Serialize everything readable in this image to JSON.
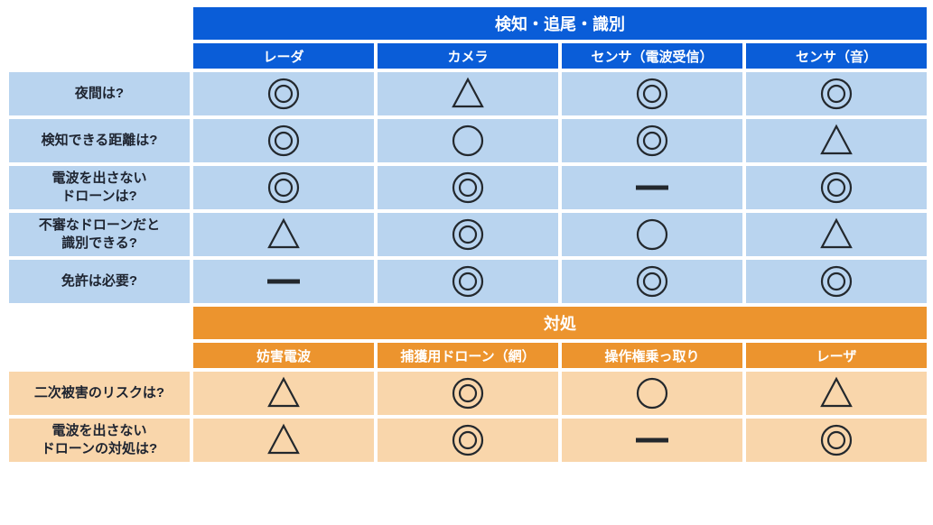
{
  "symbol_stroke": "#23282d",
  "symbol_stroke_width": 2.2,
  "sections": [
    {
      "key": "detect",
      "title": "検知・追尾・識別",
      "theme": "blue",
      "columns": [
        "レーダ",
        "カメラ",
        "センサ（電波受信）",
        "センサ（音）"
      ],
      "rows": [
        {
          "label": "夜間は?",
          "cells": [
            "double_circle",
            "triangle",
            "double_circle",
            "double_circle"
          ]
        },
        {
          "label": "検知できる距離は?",
          "cells": [
            "double_circle",
            "circle",
            "double_circle",
            "triangle"
          ]
        },
        {
          "label": "電波を出さない\nドローンは?",
          "cells": [
            "double_circle",
            "double_circle",
            "dash",
            "double_circle"
          ]
        },
        {
          "label": "不審なドローンだと\n識別できる?",
          "cells": [
            "triangle",
            "double_circle",
            "circle",
            "triangle"
          ]
        },
        {
          "label": "免許は必要?",
          "cells": [
            "dash",
            "double_circle",
            "double_circle",
            "double_circle"
          ]
        }
      ]
    },
    {
      "key": "counter",
      "title": "対処",
      "theme": "orange",
      "columns": [
        "妨害電波",
        "捕獲用ドローン（網）",
        "操作権乗っ取り",
        "レーザ"
      ],
      "rows": [
        {
          "label": "二次被害のリスクは?",
          "cells": [
            "triangle",
            "double_circle",
            "circle",
            "triangle"
          ]
        },
        {
          "label": "電波を出さない\nドローンの対処は?",
          "cells": [
            "triangle",
            "double_circle",
            "dash",
            "double_circle"
          ]
        }
      ]
    }
  ]
}
